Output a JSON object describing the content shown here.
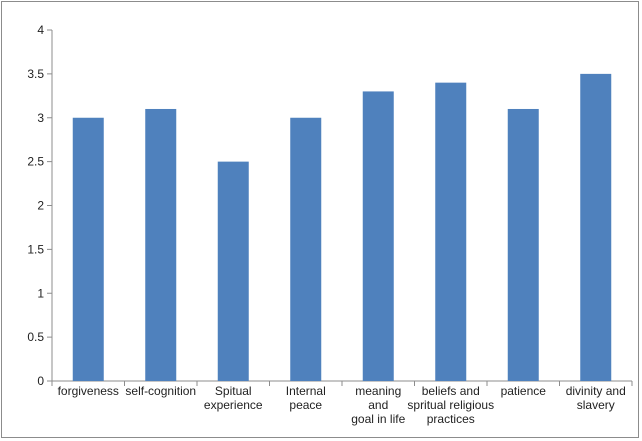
{
  "chart_data": {
    "type": "bar",
    "categories": [
      [
        "forgiveness"
      ],
      [
        "self-cognition"
      ],
      [
        "Spitual",
        "experience"
      ],
      [
        "Internal",
        "peace"
      ],
      [
        "meaning",
        "and",
        "goal in life"
      ],
      [
        "beliefs and",
        "spritual religious",
        "practices"
      ],
      [
        "patience"
      ],
      [
        "divinity and",
        "slavery"
      ]
    ],
    "values": [
      3.0,
      3.1,
      2.5,
      3.0,
      3.3,
      3.4,
      3.1,
      3.5
    ],
    "ylim": [
      0,
      4
    ],
    "yticks": [
      "0",
      "0.5",
      "1",
      "1.5",
      "2",
      "2.5",
      "3",
      "3.5",
      "4"
    ],
    "grid": false,
    "legend": "none",
    "title": "",
    "xlabel": "",
    "ylabel": "",
    "colors": {
      "bar": "#4f81bd",
      "axis": "#8c8c8c"
    }
  }
}
